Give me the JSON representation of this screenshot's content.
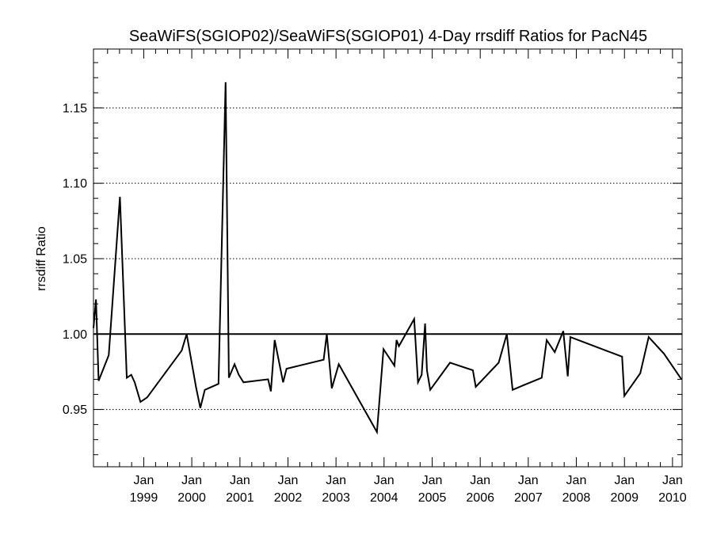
{
  "chart_data": {
    "type": "line",
    "title": "SeaWiFS(SGIOP02)/SeaWiFS(SGIOP01) 4-Day rrsdiff Ratios for PacN45",
    "xlabel": "",
    "ylabel": "rrsdiff Ratio",
    "xlim": [
      "1997-12-15",
      "2010-03-15"
    ],
    "ylim": [
      0.912,
      1.189
    ],
    "yticks": [
      0.95,
      1.0,
      1.05,
      1.1,
      1.15
    ],
    "ytick_labels": [
      "0.95",
      "1.00",
      "1.05",
      "1.10",
      "1.15"
    ],
    "xticks": [
      {
        "date": "1999-01-01",
        "month": "Jan",
        "year": "1999"
      },
      {
        "date": "2000-01-01",
        "month": "Jan",
        "year": "2000"
      },
      {
        "date": "2001-01-01",
        "month": "Jan",
        "year": "2001"
      },
      {
        "date": "2002-01-01",
        "month": "Jan",
        "year": "2002"
      },
      {
        "date": "2003-01-01",
        "month": "Jan",
        "year": "2003"
      },
      {
        "date": "2004-01-01",
        "month": "Jan",
        "year": "2004"
      },
      {
        "date": "2005-01-01",
        "month": "Jan",
        "year": "2005"
      },
      {
        "date": "2006-01-01",
        "month": "Jan",
        "year": "2006"
      },
      {
        "date": "2007-01-01",
        "month": "Jan",
        "year": "2007"
      },
      {
        "date": "2008-01-01",
        "month": "Jan",
        "year": "2008"
      },
      {
        "date": "2009-01-01",
        "month": "Jan",
        "year": "2009"
      },
      {
        "date": "2010-01-01",
        "month": "Jan",
        "year": "2010"
      }
    ],
    "grid": "horizontal dotted",
    "reference_line": 1.0,
    "series": [
      {
        "x": [
          "1997-12-15",
          "1998-01-03",
          "1998-01-23",
          "1998-04-10",
          "1998-07-04",
          "1998-08-25",
          "1998-09-28",
          "1998-10-24",
          "1998-12-07",
          "1999-01-27",
          "1999-10-16",
          "1999-11-23",
          "2000-02-04",
          "2000-03-06",
          "2000-04-09",
          "2000-07-22",
          "2000-09-14",
          "2000-10-09",
          "2000-11-21",
          "2000-12-23",
          "2001-01-28",
          "2001-08-03",
          "2001-08-24",
          "2001-09-22",
          "2001-11-25",
          "2001-12-21",
          "2002-09-29",
          "2002-10-23",
          "2002-11-30",
          "2003-01-22",
          "2003-11-08",
          "2003-12-28",
          "2004-03-20",
          "2004-04-05",
          "2004-04-23",
          "2004-08-17",
          "2004-09-15",
          "2004-10-13",
          "2004-11-08",
          "2004-11-22",
          "2004-12-17",
          "2005-05-16",
          "2005-11-06",
          "2005-11-28",
          "2006-05-21",
          "2006-07-22",
          "2006-09-04",
          "2006-11-24",
          "2007-04-13",
          "2007-05-21",
          "2007-07-21",
          "2007-09-24",
          "2007-10-28",
          "2007-11-17",
          "2008-12-14",
          "2008-12-31",
          "2009-05-01",
          "2009-07-04",
          "2009-10-28",
          "2010-03-10"
        ],
        "values": [
          1.004,
          1.023,
          0.969,
          0.986,
          1.091,
          0.971,
          0.973,
          0.968,
          0.955,
          0.958,
          0.989,
          1.0,
          0.964,
          0.951,
          0.963,
          0.967,
          1.167,
          0.971,
          0.98,
          0.973,
          0.968,
          0.97,
          0.962,
          0.996,
          0.968,
          0.977,
          0.983,
          1.0,
          0.964,
          0.98,
          0.935,
          0.99,
          0.979,
          0.996,
          0.992,
          1.01,
          0.968,
          0.973,
          1.007,
          0.976,
          0.963,
          0.981,
          0.976,
          0.965,
          0.981,
          1.0,
          0.963,
          0.966,
          0.971,
          0.996,
          0.988,
          1.002,
          0.972,
          0.998,
          0.985,
          0.959,
          0.974,
          0.998,
          0.987,
          0.97
        ]
      }
    ]
  }
}
